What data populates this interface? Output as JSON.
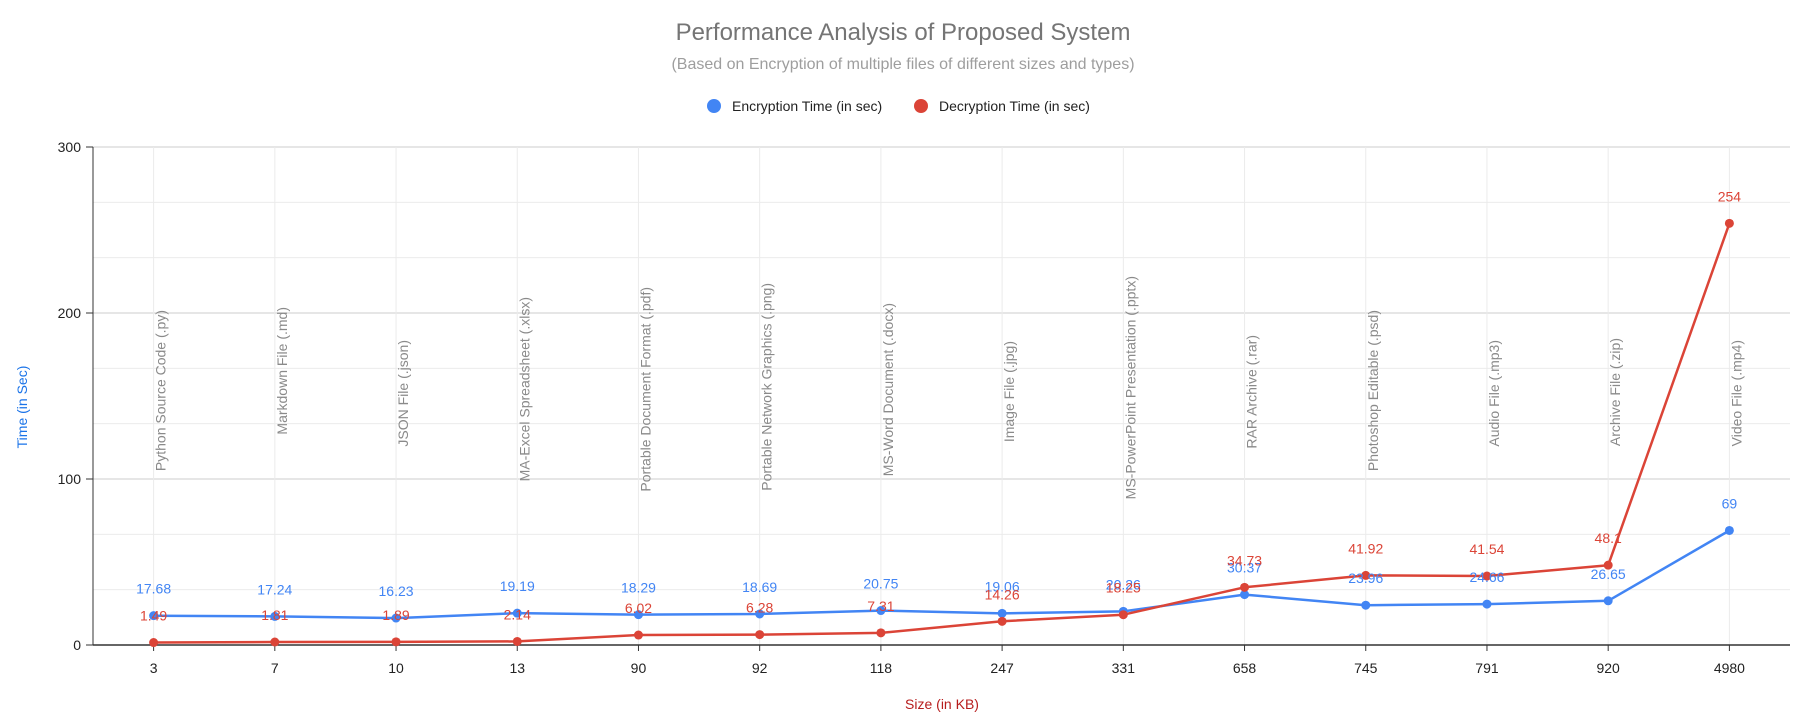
{
  "chart_data": {
    "type": "line",
    "title": "Performance Analysis of Proposed System",
    "subtitle": "(Based on Encryption of multiple files of different sizes and types)",
    "xlabel": "Size (in KB)",
    "ylabel": "Time (in Sec)",
    "ylim": [
      0,
      300
    ],
    "yticks": [
      "0",
      "100",
      "200",
      "300"
    ],
    "grid": true,
    "legend_position": "top",
    "categories": [
      "3",
      "7",
      "10",
      "13",
      "90",
      "92",
      "118",
      "247",
      "331",
      "658",
      "745",
      "791",
      "920",
      "4980"
    ],
    "annotations": [
      "Python Source Code (.py)",
      "Markdown File (.md)",
      "JSON File (.json)",
      "MA-Excel Spreadsheet (.xlsx)",
      "Portable Document Format (.pdf)",
      "Portable Network Graphics (.png)",
      "MS-Word Document (.docx)",
      "Image File (.jpg)",
      "MS-PowerPoint Presentation (.pptx)",
      "RAR Archive (.rar)",
      "Photoshop Editable (.psd)",
      "Audio File (.mp3)",
      "Archive File (.zip)",
      "Video File (.mp4)"
    ],
    "series": [
      {
        "name": "Encryption Time (in sec)",
        "color": "#4285f4",
        "values": [
          17.68,
          17.24,
          16.23,
          19.19,
          18.29,
          18.69,
          20.75,
          19.06,
          20.26,
          30.37,
          23.96,
          24.66,
          26.65,
          69
        ]
      },
      {
        "name": "Decryption Time (in sec)",
        "color": "#db4437",
        "values": [
          1.49,
          1.81,
          1.89,
          2.14,
          6.02,
          6.28,
          7.31,
          14.26,
          18.25,
          34.73,
          41.92,
          41.54,
          48.1,
          254
        ]
      }
    ]
  }
}
